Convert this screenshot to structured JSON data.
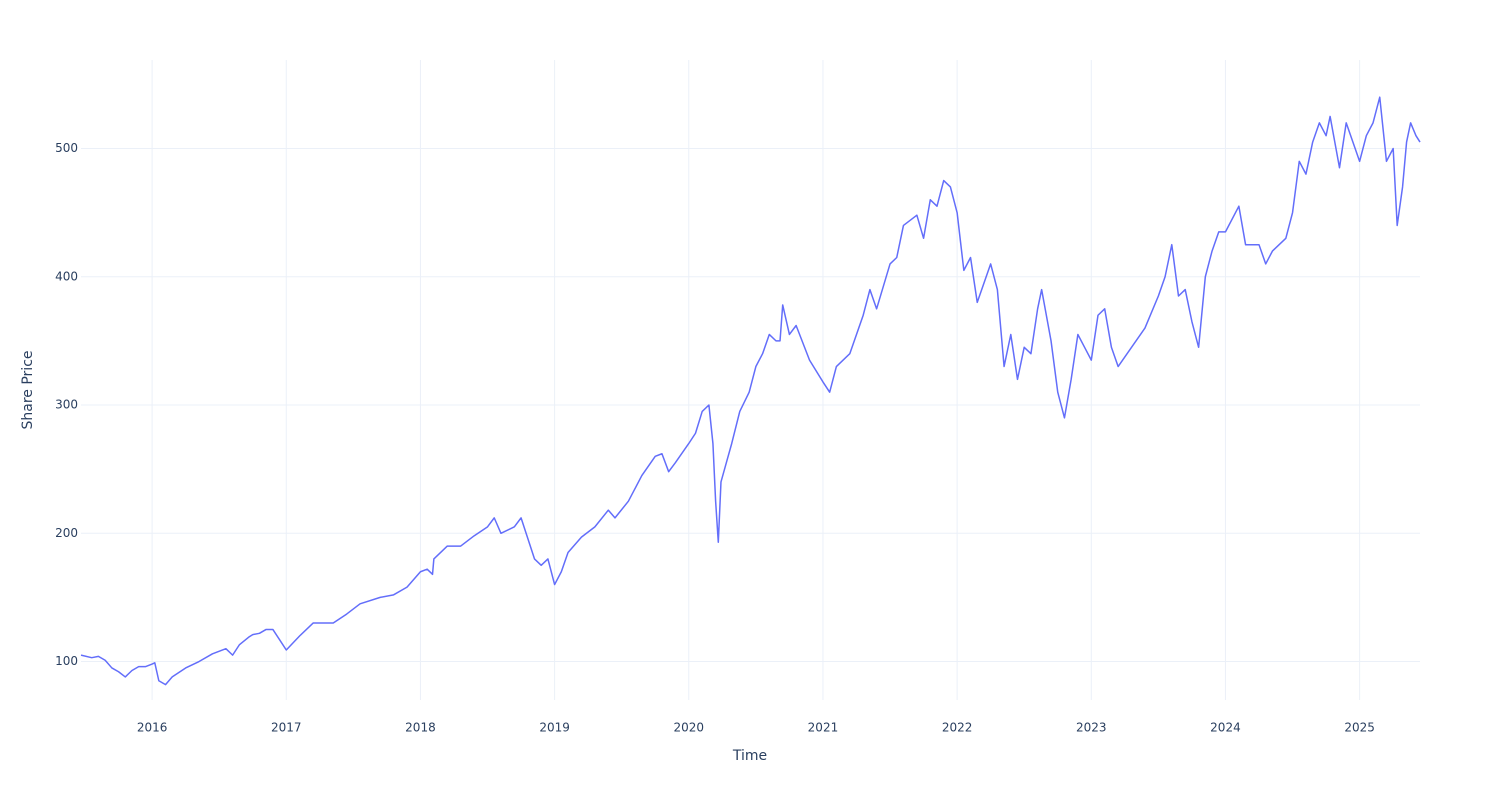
{
  "chart_data": {
    "type": "line",
    "x_label": "Time",
    "y_label": "Share Price",
    "color": "#636efa",
    "grid": true,
    "xlim": [
      2015.47,
      2025.45
    ],
    "xticks": [
      2016,
      2017,
      2018,
      2019,
      2020,
      2021,
      2022,
      2023,
      2024,
      2025
    ],
    "ylim": [
      70,
      569
    ],
    "yticks": [
      100,
      200,
      300,
      400,
      500
    ],
    "x": [
      2015.47,
      2015.55,
      2015.6,
      2015.65,
      2015.7,
      2015.75,
      2015.8,
      2015.85,
      2015.9,
      2015.95,
      2016.0,
      2016.02,
      2016.05,
      2016.1,
      2016.15,
      2016.25,
      2016.35,
      2016.45,
      2016.55,
      2016.6,
      2016.65,
      2016.72,
      2016.75,
      2016.8,
      2016.85,
      2016.9,
      2016.95,
      2017.0,
      2017.1,
      2017.2,
      2017.35,
      2017.45,
      2017.55,
      2017.7,
      2017.8,
      2017.9,
      2018.0,
      2018.05,
      2018.09,
      2018.1,
      2018.2,
      2018.3,
      2018.4,
      2018.5,
      2018.55,
      2018.6,
      2018.7,
      2018.75,
      2018.8,
      2018.85,
      2018.9,
      2018.95,
      2019.0,
      2019.05,
      2019.1,
      2019.2,
      2019.3,
      2019.4,
      2019.45,
      2019.55,
      2019.65,
      2019.75,
      2019.8,
      2019.85,
      2019.9,
      2020.0,
      2020.05,
      2020.1,
      2020.15,
      2020.18,
      2020.2,
      2020.22,
      2020.24,
      2020.28,
      2020.32,
      2020.38,
      2020.45,
      2020.5,
      2020.55,
      2020.6,
      2020.65,
      2020.68,
      2020.7,
      2020.75,
      2020.8,
      2020.9,
      2021.0,
      2021.05,
      2021.1,
      2021.2,
      2021.3,
      2021.35,
      2021.4,
      2021.5,
      2021.55,
      2021.6,
      2021.7,
      2021.75,
      2021.8,
      2021.85,
      2021.9,
      2021.95,
      2022.0,
      2022.05,
      2022.1,
      2022.15,
      2022.2,
      2022.25,
      2022.3,
      2022.35,
      2022.4,
      2022.45,
      2022.5,
      2022.55,
      2022.6,
      2022.63,
      2022.7,
      2022.75,
      2022.8,
      2022.85,
      2022.9,
      2022.95,
      2023.0,
      2023.05,
      2023.1,
      2023.15,
      2023.2,
      2023.3,
      2023.4,
      2023.5,
      2023.55,
      2023.6,
      2023.65,
      2023.7,
      2023.75,
      2023.8,
      2023.85,
      2023.9,
      2023.95,
      2024.0,
      2024.1,
      2024.15,
      2024.25,
      2024.3,
      2024.35,
      2024.45,
      2024.5,
      2024.55,
      2024.6,
      2024.65,
      2024.7,
      2024.75,
      2024.78,
      2024.85,
      2024.9,
      2024.95,
      2025.0,
      2025.05,
      2025.1,
      2025.15,
      2025.2,
      2025.25,
      2025.28,
      2025.32,
      2025.35,
      2025.38,
      2025.42,
      2025.45
    ],
    "values": [
      105,
      103,
      104,
      101,
      95,
      92,
      88,
      93,
      96,
      96,
      98,
      99,
      85,
      82,
      88,
      95,
      100,
      106,
      110,
      105,
      113,
      119,
      121,
      122,
      125,
      125,
      117,
      109,
      120,
      130,
      130,
      137,
      145,
      150,
      152,
      158,
      170,
      172,
      168,
      180,
      190,
      190,
      198,
      205,
      212,
      200,
      205,
      212,
      196,
      180,
      175,
      180,
      160,
      170,
      185,
      197,
      205,
      218,
      212,
      225,
      245,
      260,
      262,
      248,
      255,
      270,
      278,
      295,
      300,
      270,
      225,
      193,
      240,
      255,
      270,
      295,
      310,
      330,
      340,
      355,
      350,
      350,
      378,
      355,
      362,
      335,
      318,
      310,
      330,
      340,
      370,
      390,
      375,
      410,
      415,
      440,
      448,
      430,
      460,
      455,
      475,
      470,
      450,
      405,
      415,
      380,
      395,
      410,
      390,
      330,
      355,
      320,
      345,
      340,
      375,
      390,
      350,
      310,
      290,
      320,
      355,
      345,
      335,
      370,
      375,
      345,
      330,
      345,
      360,
      385,
      400,
      425,
      385,
      390,
      365,
      345,
      400,
      420,
      435,
      435,
      455,
      425,
      425,
      410,
      420,
      430,
      450,
      490,
      480,
      505,
      520,
      510,
      525,
      485,
      520,
      505,
      490,
      510,
      520,
      540,
      490,
      500,
      440,
      470,
      505,
      520,
      510,
      505
    ]
  }
}
